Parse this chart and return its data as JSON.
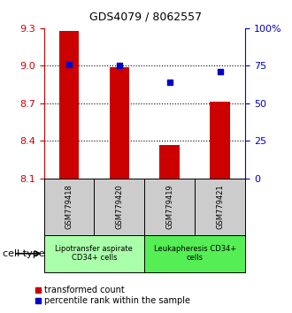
{
  "title": "GDS4079 / 8062557",
  "samples": [
    "GSM779418",
    "GSM779420",
    "GSM779419",
    "GSM779421"
  ],
  "bar_values": [
    9.28,
    8.99,
    8.37,
    8.71
  ],
  "percentile_values": [
    76,
    75,
    64,
    71
  ],
  "ylim_left": [
    8.1,
    9.3
  ],
  "ylim_right": [
    0,
    100
  ],
  "yticks_left": [
    8.1,
    8.4,
    8.7,
    9.0,
    9.3
  ],
  "yticks_right": [
    0,
    25,
    50,
    75,
    100
  ],
  "ytick_labels_right": [
    "0",
    "25",
    "50",
    "75",
    "100%"
  ],
  "bar_color": "#cc0000",
  "dot_color": "#0000cc",
  "groups": [
    {
      "label": "Lipotransfer aspirate\nCD34+ cells",
      "samples": [
        0,
        1
      ],
      "color": "#aaffaa"
    },
    {
      "label": "Leukapheresis CD34+\ncells",
      "samples": [
        2,
        3
      ],
      "color": "#55ee55"
    }
  ],
  "cell_type_label": "cell type",
  "legend_bar_label": "transformed count",
  "legend_dot_label": "percentile rank within the sample",
  "sample_box_color": "#cccccc",
  "title_fontsize": 9,
  "axis_fontsize": 8,
  "sample_fontsize": 6,
  "group_fontsize": 6,
  "legend_fontsize": 7
}
